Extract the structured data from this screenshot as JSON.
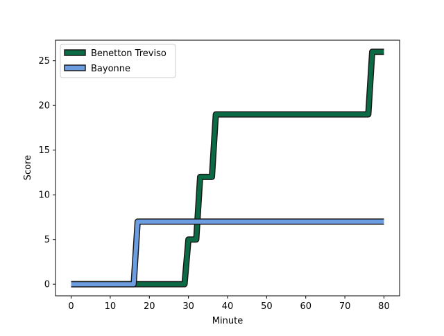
{
  "chart_data": {
    "type": "line",
    "title": "",
    "xlabel": "Minute",
    "ylabel": "Score",
    "xlim": [
      -4,
      84
    ],
    "ylim": [
      -1.3,
      27.3
    ],
    "xticks": [
      0,
      10,
      20,
      30,
      40,
      50,
      60,
      70,
      80
    ],
    "yticks": [
      0,
      5,
      10,
      15,
      20,
      25
    ],
    "grid": false,
    "legend_position": "top-left",
    "series": [
      {
        "name": "Benetton Treviso",
        "color": "#0b6b45",
        "edge_color": "#1a1a1a",
        "x": [
          0,
          16,
          29,
          30,
          31,
          32,
          33,
          34,
          35,
          36,
          37,
          76,
          77,
          78,
          80
        ],
        "y": [
          0,
          0,
          0,
          5,
          5,
          5,
          12,
          12,
          12,
          12,
          19,
          19,
          26,
          26,
          26
        ]
      },
      {
        "name": "Bayonne",
        "color": "#6c9de0",
        "edge_color": "#1a1a1a",
        "x": [
          0,
          16,
          17,
          18,
          80
        ],
        "y": [
          0,
          0,
          7,
          7,
          7
        ]
      }
    ]
  }
}
